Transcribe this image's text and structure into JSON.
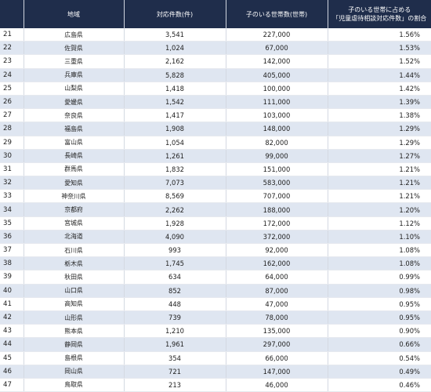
{
  "header": {
    "col_rank": "",
    "col_pref": "地域",
    "col_cases": "対応件数(件)",
    "col_households": "子のいる世帯数(世帯)",
    "col_ratio_line1": "子のいる世帯に占める",
    "col_ratio_line2": "「児童虐待相談対応件数」の割合"
  },
  "rows": [
    {
      "rank": "21",
      "pref": "広島県",
      "cases": "3,541",
      "households": "227,000",
      "ratio": "1.56%"
    },
    {
      "rank": "22",
      "pref": "佐賀県",
      "cases": "1,024",
      "households": "67,000",
      "ratio": "1.53%"
    },
    {
      "rank": "23",
      "pref": "三重県",
      "cases": "2,162",
      "households": "142,000",
      "ratio": "1.52%"
    },
    {
      "rank": "24",
      "pref": "兵庫県",
      "cases": "5,828",
      "households": "405,000",
      "ratio": "1.44%"
    },
    {
      "rank": "25",
      "pref": "山梨県",
      "cases": "1,418",
      "households": "100,000",
      "ratio": "1.42%"
    },
    {
      "rank": "26",
      "pref": "愛媛県",
      "cases": "1,542",
      "households": "111,000",
      "ratio": "1.39%"
    },
    {
      "rank": "27",
      "pref": "奈良県",
      "cases": "1,417",
      "households": "103,000",
      "ratio": "1.38%"
    },
    {
      "rank": "28",
      "pref": "福島県",
      "cases": "1,908",
      "households": "148,000",
      "ratio": "1.29%"
    },
    {
      "rank": "29",
      "pref": "富山県",
      "cases": "1,054",
      "households": "82,000",
      "ratio": "1.29%"
    },
    {
      "rank": "30",
      "pref": "長崎県",
      "cases": "1,261",
      "households": "99,000",
      "ratio": "1.27%"
    },
    {
      "rank": "31",
      "pref": "群馬県",
      "cases": "1,832",
      "households": "151,000",
      "ratio": "1.21%"
    },
    {
      "rank": "32",
      "pref": "愛知県",
      "cases": "7,073",
      "households": "583,000",
      "ratio": "1.21%"
    },
    {
      "rank": "33",
      "pref": "神奈川県",
      "cases": "8,569",
      "households": "707,000",
      "ratio": "1.21%"
    },
    {
      "rank": "34",
      "pref": "京都府",
      "cases": "2,262",
      "households": "188,000",
      "ratio": "1.20%"
    },
    {
      "rank": "35",
      "pref": "宮城県",
      "cases": "1,928",
      "households": "172,000",
      "ratio": "1.12%"
    },
    {
      "rank": "36",
      "pref": "北海道",
      "cases": "4,090",
      "households": "372,000",
      "ratio": "1.10%"
    },
    {
      "rank": "37",
      "pref": "石川県",
      "cases": "993",
      "households": "92,000",
      "ratio": "1.08%"
    },
    {
      "rank": "38",
      "pref": "栃木県",
      "cases": "1,745",
      "households": "162,000",
      "ratio": "1.08%"
    },
    {
      "rank": "39",
      "pref": "秋田県",
      "cases": "634",
      "households": "64,000",
      "ratio": "0.99%"
    },
    {
      "rank": "40",
      "pref": "山口県",
      "cases": "852",
      "households": "87,000",
      "ratio": "0.98%"
    },
    {
      "rank": "41",
      "pref": "高知県",
      "cases": "448",
      "households": "47,000",
      "ratio": "0.95%"
    },
    {
      "rank": "42",
      "pref": "山形県",
      "cases": "739",
      "households": "78,000",
      "ratio": "0.95%"
    },
    {
      "rank": "43",
      "pref": "熊本県",
      "cases": "1,210",
      "households": "135,000",
      "ratio": "0.90%"
    },
    {
      "rank": "44",
      "pref": "静岡県",
      "cases": "1,961",
      "households": "297,000",
      "ratio": "0.66%"
    },
    {
      "rank": "45",
      "pref": "島根県",
      "cases": "354",
      "households": "66,000",
      "ratio": "0.54%"
    },
    {
      "rank": "46",
      "pref": "岡山県",
      "cases": "721",
      "households": "147,000",
      "ratio": "0.49%"
    },
    {
      "rank": "47",
      "pref": "鳥取県",
      "cases": "213",
      "households": "46,000",
      "ratio": "0.46%"
    }
  ],
  "colors": {
    "header_bg": "#1f2d4b",
    "stripe_bg": "#dfe6f1"
  }
}
